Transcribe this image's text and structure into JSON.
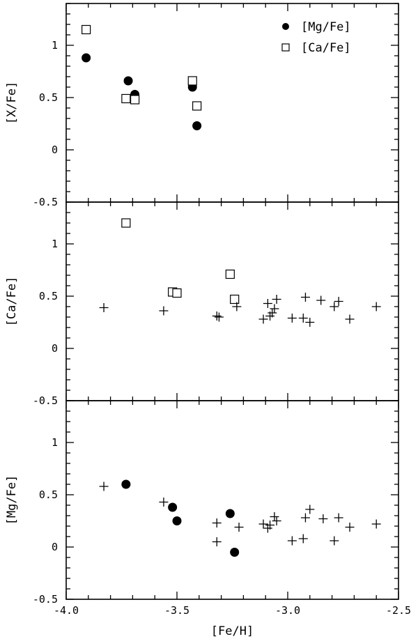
{
  "chart_data": [
    {
      "type": "scatter",
      "title": "",
      "xlabel": "",
      "ylabel": "[X/Fe]",
      "xlim": [
        -4.0,
        -2.5
      ],
      "ylim": [
        -0.5,
        1.4
      ],
      "x_ticks": [
        "-4.0",
        "-3.5",
        "-3.0",
        "-2.5"
      ],
      "y_ticks": [
        "-0.5",
        "0",
        "0.5",
        "1"
      ],
      "legend": {
        "position": "top-right",
        "entries": [
          {
            "label": "[Mg/Fe]",
            "marker": "filled-circle"
          },
          {
            "label": "[Ca/Fe]",
            "marker": "open-square"
          }
        ]
      },
      "series": [
        {
          "name": "[Mg/Fe]",
          "marker": "filled-circle",
          "points": [
            [
              -3.91,
              0.88
            ],
            [
              -3.72,
              0.66
            ],
            [
              -3.69,
              0.53
            ],
            [
              -3.43,
              0.6
            ],
            [
              -3.41,
              0.23
            ]
          ]
        },
        {
          "name": "[Ca/Fe]",
          "marker": "open-square",
          "points": [
            [
              -3.91,
              1.15
            ],
            [
              -3.73,
              0.49
            ],
            [
              -3.69,
              0.48
            ],
            [
              -3.43,
              0.66
            ],
            [
              -3.41,
              0.42
            ]
          ]
        }
      ]
    },
    {
      "type": "scatter",
      "title": "",
      "xlabel": "",
      "ylabel": "[Ca/Fe]",
      "xlim": [
        -4.0,
        -2.5
      ],
      "ylim": [
        -0.5,
        1.4
      ],
      "x_ticks": [
        "-4.0",
        "-3.5",
        "-3.0",
        "-2.5"
      ],
      "y_ticks": [
        "-0.5",
        "0",
        "0.5",
        "1"
      ],
      "series": [
        {
          "marker": "open-square",
          "points": [
            [
              -3.73,
              1.2
            ],
            [
              -3.52,
              0.54
            ],
            [
              -3.5,
              0.53
            ],
            [
              -3.26,
              0.71
            ],
            [
              -3.24,
              0.47
            ]
          ]
        },
        {
          "marker": "plus",
          "points": [
            [
              -3.83,
              0.39
            ],
            [
              -3.56,
              0.36
            ],
            [
              -3.32,
              0.31
            ],
            [
              -3.31,
              0.3
            ],
            [
              -3.23,
              0.4
            ],
            [
              -3.11,
              0.28
            ],
            [
              -3.09,
              0.43
            ],
            [
              -3.08,
              0.31
            ],
            [
              -3.07,
              0.34
            ],
            [
              -3.06,
              0.38
            ],
            [
              -3.05,
              0.47
            ],
            [
              -2.98,
              0.29
            ],
            [
              -2.93,
              0.29
            ],
            [
              -2.92,
              0.49
            ],
            [
              -2.9,
              0.25
            ],
            [
              -2.85,
              0.46
            ],
            [
              -2.79,
              0.4
            ],
            [
              -2.77,
              0.45
            ],
            [
              -2.72,
              0.28
            ],
            [
              -2.6,
              0.4
            ]
          ]
        }
      ]
    },
    {
      "type": "scatter",
      "title": "",
      "xlabel": "[Fe/H]",
      "ylabel": "[Mg/Fe]",
      "xlim": [
        -4.0,
        -2.5
      ],
      "ylim": [
        -0.5,
        1.4
      ],
      "x_ticks": [
        "-4.0",
        "-3.5",
        "-3.0",
        "-2.5"
      ],
      "y_ticks": [
        "-0.5",
        "0",
        "0.5",
        "1"
      ],
      "series": [
        {
          "marker": "filled-circle",
          "points": [
            [
              -3.73,
              0.6
            ],
            [
              -3.52,
              0.38
            ],
            [
              -3.5,
              0.25
            ],
            [
              -3.26,
              0.32
            ],
            [
              -3.24,
              -0.05
            ]
          ]
        },
        {
          "marker": "plus",
          "points": [
            [
              -3.83,
              0.58
            ],
            [
              -3.56,
              0.43
            ],
            [
              -3.32,
              0.23
            ],
            [
              -3.32,
              0.05
            ],
            [
              -3.22,
              0.19
            ],
            [
              -3.11,
              0.22
            ],
            [
              -3.09,
              0.18
            ],
            [
              -3.08,
              0.21
            ],
            [
              -3.06,
              0.29
            ],
            [
              -3.05,
              0.25
            ],
            [
              -2.98,
              0.06
            ],
            [
              -2.93,
              0.08
            ],
            [
              -2.92,
              0.28
            ],
            [
              -2.9,
              0.36
            ],
            [
              -2.84,
              0.27
            ],
            [
              -2.79,
              0.06
            ],
            [
              -2.77,
              0.28
            ],
            [
              -2.72,
              0.19
            ],
            [
              -2.6,
              0.22
            ]
          ]
        }
      ]
    }
  ]
}
